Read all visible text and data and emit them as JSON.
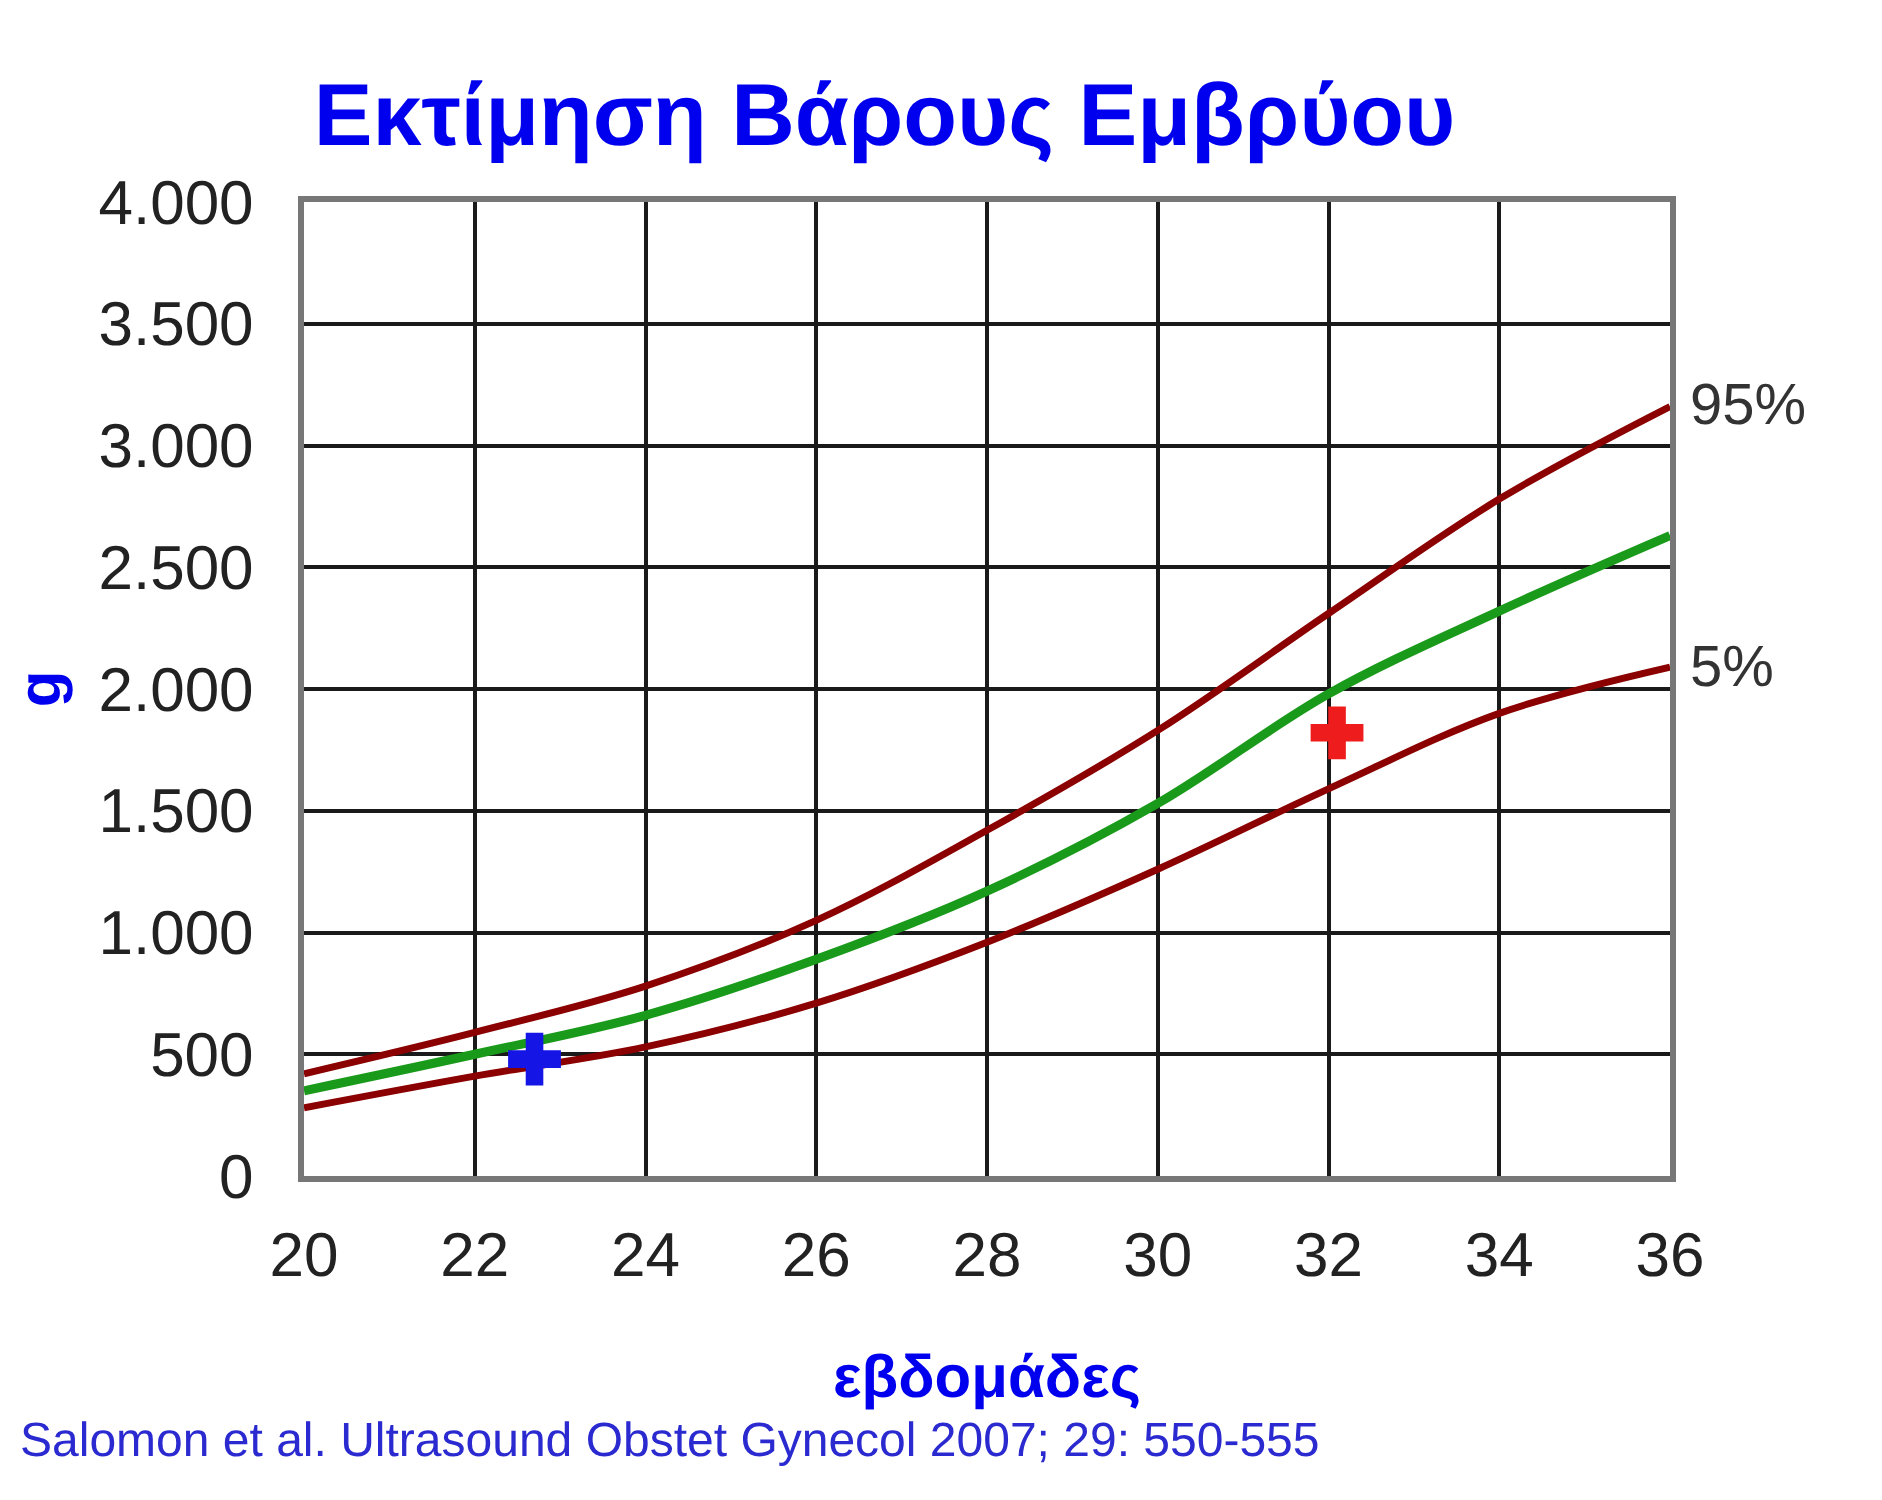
{
  "chart_data": {
    "type": "line",
    "title": "Εκτίμηση Βάρους Εμβρύου",
    "xlabel": "εβδομάδες",
    "ylabel": "g",
    "annotations": [
      "Salomon et al. Ultrasound Obstet Gynecol 2007; 29: 550-555"
    ],
    "x": [
      20,
      22,
      24,
      26,
      28,
      30,
      32,
      34,
      36
    ],
    "series": [
      {
        "name": "95%",
        "color": "#8b0000",
        "values": [
          420,
          590,
          780,
          1050,
          1420,
          1830,
          2310,
          2780,
          3160
        ]
      },
      {
        "color": "#1a9a1a",
        "values": [
          350,
          500,
          660,
          890,
          1170,
          1530,
          1980,
          2320,
          2630
        ]
      },
      {
        "name": "5%",
        "color": "#8b0000",
        "values": [
          280,
          410,
          530,
          710,
          960,
          1260,
          1590,
          1900,
          2090
        ]
      },
      {
        "type": "scatter",
        "x": [
          22.7
        ],
        "values": [
          480
        ],
        "color": "#1515e6",
        "marker": "cross"
      },
      {
        "type": "scatter",
        "x": [
          32.1
        ],
        "values": [
          1820
        ],
        "color": "#ee1c1c",
        "marker": "cross"
      }
    ],
    "xlim": [
      20,
      36
    ],
    "xticks": [
      20,
      22,
      24,
      26,
      28,
      30,
      32,
      34,
      36
    ],
    "ylim": [
      0,
      4000
    ],
    "yticks": [
      0,
      500,
      {
        "value": 1000,
        "label": "1.000"
      },
      {
        "value": 1500,
        "label": "1.500"
      },
      {
        "value": 2000,
        "label": "2.000"
      },
      {
        "value": 2500,
        "label": "2.500"
      },
      {
        "value": 3000,
        "label": "3.000"
      },
      {
        "value": 3500,
        "label": "3.500"
      },
      {
        "value": 4000,
        "label": "4.000"
      }
    ],
    "grid": true,
    "legend": false,
    "line_style": "solid"
  }
}
